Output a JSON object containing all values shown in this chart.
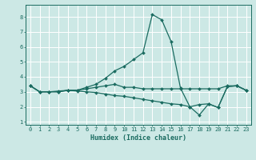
{
  "xlabel": "Humidex (Indice chaleur)",
  "background_color": "#cce8e5",
  "grid_color": "#ffffff",
  "line_color": "#1a6b60",
  "line1_y": [
    3.4,
    3.0,
    3.0,
    3.0,
    3.1,
    3.1,
    3.2,
    3.3,
    3.4,
    3.5,
    3.3,
    3.3,
    3.2,
    3.2,
    3.2,
    3.2,
    3.2,
    3.2,
    3.2,
    3.2,
    3.2,
    3.4,
    3.4,
    3.1
  ],
  "line2_y": [
    3.4,
    3.0,
    3.0,
    3.0,
    3.1,
    3.1,
    3.3,
    3.5,
    3.9,
    4.4,
    4.7,
    5.15,
    5.6,
    8.15,
    7.8,
    6.35,
    3.25,
    2.0,
    1.45,
    2.2,
    1.95,
    3.35,
    3.4,
    3.1
  ],
  "line3_y": [
    3.4,
    3.0,
    3.0,
    3.05,
    3.1,
    3.05,
    3.0,
    2.95,
    2.85,
    2.75,
    2.7,
    2.6,
    2.5,
    2.4,
    2.3,
    2.2,
    2.15,
    2.0,
    2.15,
    2.2,
    1.95,
    3.35,
    3.4,
    3.1
  ],
  "ylim": [
    0.8,
    8.8
  ],
  "xlim": [
    -0.5,
    23.5
  ],
  "yticks": [
    1,
    2,
    3,
    4,
    5,
    6,
    7,
    8
  ],
  "xticks": [
    0,
    1,
    2,
    3,
    4,
    5,
    6,
    7,
    8,
    9,
    10,
    11,
    12,
    13,
    14,
    15,
    16,
    17,
    18,
    19,
    20,
    21,
    22,
    23
  ],
  "xtick_labels": [
    "0",
    "1",
    "2",
    "3",
    "4",
    "5",
    "6",
    "7",
    "8",
    "9",
    "10",
    "11",
    "12",
    "13",
    "14",
    "15",
    "16",
    "17",
    "18",
    "19",
    "20",
    "21",
    "22",
    "23"
  ],
  "marker_size": 2.0,
  "line_width": 0.9,
  "tick_fontsize": 5.0,
  "xlabel_fontsize": 6.0
}
